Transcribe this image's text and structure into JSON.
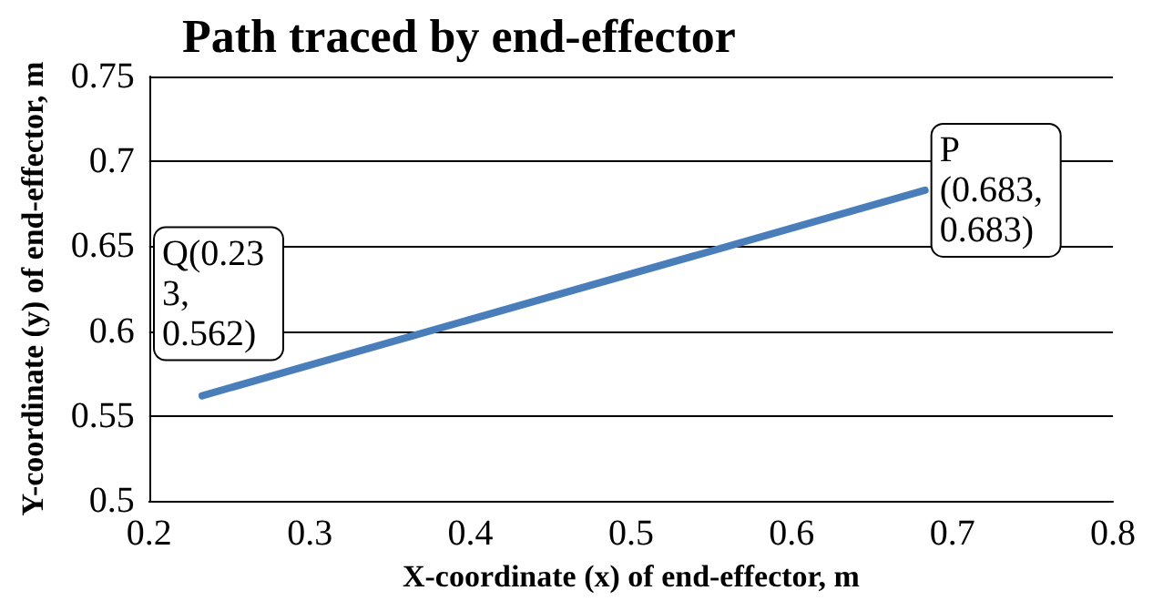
{
  "chart_data": {
    "type": "line",
    "title": "Path traced by end-effector",
    "xlabel": "X-coordinate (x) of end-effector, m",
    "ylabel": "Y-coordinate (y) of end-effector, m",
    "x": [
      0.233,
      0.683
    ],
    "series": [
      {
        "color": "#4a7ebb",
        "values": [
          0.562,
          0.683
        ]
      }
    ],
    "xlim": [
      0.2,
      0.8
    ],
    "xticks": [
      0.2,
      0.3,
      0.4,
      0.5,
      0.6,
      0.7,
      0.8
    ],
    "ylim": [
      0.5,
      0.75
    ],
    "yticks": [
      0.5,
      0.55,
      0.6,
      0.65,
      0.7,
      0.75
    ],
    "grid": "y",
    "marker": "none",
    "line_style": "solid",
    "annotations": [
      {
        "text": "P (0.683, 0.683)",
        "x": 0.683,
        "y": 0.683
      },
      {
        "text": "Q(0.233, 0.562)",
        "x": 0.233,
        "y": 0.562
      }
    ]
  }
}
